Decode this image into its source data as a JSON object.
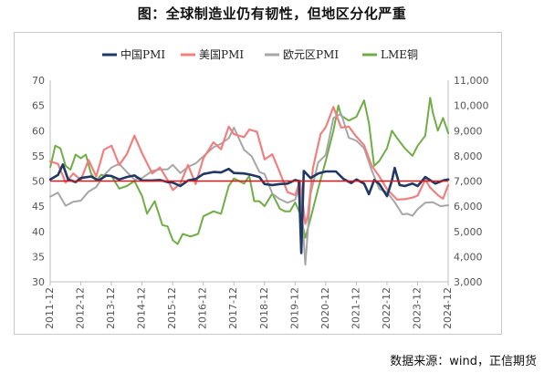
{
  "title": "图：全球制造业仍有韧性，但地区分化严重",
  "source": "数据来源：wind，正信期货",
  "chart_data": {
    "type": "line",
    "grid": false,
    "legend_position": "top",
    "x_tick_labels": [
      "2011-12",
      "2012-12",
      "2013-12",
      "2014-12",
      "2015-12",
      "2016-12",
      "2017-12",
      "2018-12",
      "2019-12",
      "2020-12",
      "2021-12",
      "2022-12",
      "2023-12",
      "2024-12"
    ],
    "x_range": [
      2011.917,
      2024.917
    ],
    "y_left": {
      "range": [
        30,
        70
      ],
      "ticks": [
        30,
        35,
        40,
        45,
        50,
        55,
        60,
        65,
        70
      ]
    },
    "y_right": {
      "range": [
        3000,
        11000
      ],
      "ticks": [
        "3,000",
        "4,000",
        "5,000",
        "6,000",
        "7,000",
        "8,000",
        "9,000",
        "10,000",
        "11,000"
      ],
      "tick_values": [
        3000,
        4000,
        5000,
        6000,
        7000,
        8000,
        9000,
        10000,
        11000
      ]
    },
    "reference_line": {
      "axis": "left",
      "value": 50,
      "color": "#d7191c"
    },
    "series": [
      {
        "name": "中国PMI",
        "axis": "left",
        "color": "#1f3864",
        "width": 2.6,
        "points": [
          [
            2011.92,
            50.3
          ],
          [
            2012.17,
            51.2
          ],
          [
            2012.33,
            53.3
          ],
          [
            2012.5,
            50.3
          ],
          [
            2012.75,
            49.8
          ],
          [
            2012.92,
            50.6
          ],
          [
            2013.25,
            50.9
          ],
          [
            2013.5,
            50.1
          ],
          [
            2013.75,
            51.1
          ],
          [
            2013.92,
            51.0
          ],
          [
            2014.17,
            50.3
          ],
          [
            2014.42,
            50.8
          ],
          [
            2014.67,
            51.1
          ],
          [
            2014.92,
            50.1
          ],
          [
            2015.25,
            50.1
          ],
          [
            2015.5,
            50.2
          ],
          [
            2015.75,
            49.8
          ],
          [
            2015.92,
            49.7
          ],
          [
            2016.17,
            49.0
          ],
          [
            2016.42,
            50.1
          ],
          [
            2016.67,
            50.4
          ],
          [
            2016.92,
            51.4
          ],
          [
            2017.25,
            51.8
          ],
          [
            2017.5,
            51.7
          ],
          [
            2017.75,
            52.4
          ],
          [
            2017.92,
            51.6
          ],
          [
            2018.25,
            51.5
          ],
          [
            2018.5,
            51.2
          ],
          [
            2018.75,
            50.8
          ],
          [
            2018.92,
            49.4
          ],
          [
            2019.17,
            49.2
          ],
          [
            2019.42,
            49.4
          ],
          [
            2019.67,
            49.5
          ],
          [
            2019.92,
            50.2
          ],
          [
            2020.04,
            50.0
          ],
          [
            2020.12,
            35.7
          ],
          [
            2020.2,
            52.0
          ],
          [
            2020.42,
            50.6
          ],
          [
            2020.67,
            51.5
          ],
          [
            2020.92,
            51.9
          ],
          [
            2021.25,
            51.9
          ],
          [
            2021.5,
            50.4
          ],
          [
            2021.75,
            49.6
          ],
          [
            2021.92,
            50.3
          ],
          [
            2022.17,
            49.5
          ],
          [
            2022.33,
            47.4
          ],
          [
            2022.5,
            50.2
          ],
          [
            2022.67,
            49.4
          ],
          [
            2022.92,
            47.0
          ],
          [
            2023.08,
            50.1
          ],
          [
            2023.17,
            52.6
          ],
          [
            2023.33,
            49.2
          ],
          [
            2023.5,
            49.0
          ],
          [
            2023.75,
            49.5
          ],
          [
            2023.92,
            49.0
          ],
          [
            2024.17,
            50.8
          ],
          [
            2024.5,
            49.5
          ],
          [
            2024.75,
            50.1
          ],
          [
            2024.92,
            50.3
          ]
        ]
      },
      {
        "name": "美国PMI",
        "axis": "left",
        "color": "#f08080",
        "width": 2.2,
        "points": [
          [
            2011.92,
            53.9
          ],
          [
            2012.17,
            53.4
          ],
          [
            2012.42,
            49.7
          ],
          [
            2012.67,
            51.5
          ],
          [
            2012.92,
            50.2
          ],
          [
            2013.17,
            54.2
          ],
          [
            2013.42,
            50.9
          ],
          [
            2013.67,
            56.2
          ],
          [
            2013.92,
            57.0
          ],
          [
            2014.17,
            53.2
          ],
          [
            2014.42,
            55.3
          ],
          [
            2014.67,
            59.0
          ],
          [
            2014.92,
            55.5
          ],
          [
            2015.25,
            51.5
          ],
          [
            2015.5,
            52.7
          ],
          [
            2015.75,
            50.2
          ],
          [
            2015.92,
            48.2
          ],
          [
            2016.17,
            49.5
          ],
          [
            2016.42,
            53.2
          ],
          [
            2016.67,
            49.4
          ],
          [
            2016.92,
            54.5
          ],
          [
            2017.25,
            57.7
          ],
          [
            2017.5,
            56.3
          ],
          [
            2017.75,
            60.8
          ],
          [
            2017.92,
            59.3
          ],
          [
            2018.25,
            58.7
          ],
          [
            2018.42,
            60.2
          ],
          [
            2018.67,
            59.8
          ],
          [
            2018.92,
            54.3
          ],
          [
            2019.17,
            55.3
          ],
          [
            2019.42,
            51.7
          ],
          [
            2019.67,
            47.8
          ],
          [
            2019.92,
            47.2
          ],
          [
            2020.08,
            50.1
          ],
          [
            2020.25,
            41.5
          ],
          [
            2020.33,
            43.1
          ],
          [
            2020.5,
            52.6
          ],
          [
            2020.75,
            59.3
          ],
          [
            2020.92,
            60.7
          ],
          [
            2021.17,
            64.7
          ],
          [
            2021.42,
            60.6
          ],
          [
            2021.67,
            60.8
          ],
          [
            2021.92,
            58.8
          ],
          [
            2022.17,
            57.1
          ],
          [
            2022.42,
            53.0
          ],
          [
            2022.67,
            50.9
          ],
          [
            2022.92,
            48.4
          ],
          [
            2023.25,
            46.3
          ],
          [
            2023.5,
            46.4
          ],
          [
            2023.75,
            46.7
          ],
          [
            2023.92,
            47.1
          ],
          [
            2024.17,
            50.3
          ],
          [
            2024.33,
            48.7
          ],
          [
            2024.58,
            47.2
          ],
          [
            2024.75,
            46.5
          ],
          [
            2024.92,
            49.2
          ]
        ]
      },
      {
        "name": "欧元区PMI",
        "axis": "left",
        "color": "#a6a6a6",
        "width": 2.0,
        "points": [
          [
            2011.92,
            46.9
          ],
          [
            2012.17,
            47.7
          ],
          [
            2012.42,
            45.1
          ],
          [
            2012.67,
            45.9
          ],
          [
            2012.92,
            46.1
          ],
          [
            2013.17,
            47.9
          ],
          [
            2013.42,
            48.8
          ],
          [
            2013.67,
            51.1
          ],
          [
            2013.92,
            52.7
          ],
          [
            2014.17,
            53.4
          ],
          [
            2014.42,
            51.8
          ],
          [
            2014.67,
            50.3
          ],
          [
            2014.92,
            50.6
          ],
          [
            2015.25,
            52.0
          ],
          [
            2015.5,
            52.3
          ],
          [
            2015.75,
            52.3
          ],
          [
            2015.92,
            53.2
          ],
          [
            2016.17,
            51.6
          ],
          [
            2016.42,
            52.8
          ],
          [
            2016.67,
            53.5
          ],
          [
            2016.92,
            54.9
          ],
          [
            2017.25,
            56.7
          ],
          [
            2017.5,
            57.4
          ],
          [
            2017.75,
            58.5
          ],
          [
            2017.92,
            60.6
          ],
          [
            2018.25,
            56.2
          ],
          [
            2018.5,
            54.9
          ],
          [
            2018.75,
            51.8
          ],
          [
            2018.92,
            51.4
          ],
          [
            2019.17,
            47.5
          ],
          [
            2019.42,
            46.4
          ],
          [
            2019.67,
            45.7
          ],
          [
            2019.92,
            46.3
          ],
          [
            2020.08,
            49.2
          ],
          [
            2020.25,
            33.4
          ],
          [
            2020.42,
            47.4
          ],
          [
            2020.67,
            53.7
          ],
          [
            2020.92,
            55.2
          ],
          [
            2021.17,
            62.5
          ],
          [
            2021.42,
            63.4
          ],
          [
            2021.67,
            58.6
          ],
          [
            2021.92,
            58.0
          ],
          [
            2022.17,
            56.5
          ],
          [
            2022.42,
            52.1
          ],
          [
            2022.67,
            48.4
          ],
          [
            2022.92,
            47.8
          ],
          [
            2023.17,
            45.8
          ],
          [
            2023.42,
            43.4
          ],
          [
            2023.58,
            43.5
          ],
          [
            2023.75,
            43.1
          ],
          [
            2023.92,
            44.4
          ],
          [
            2024.17,
            45.7
          ],
          [
            2024.42,
            45.8
          ],
          [
            2024.67,
            45.0
          ],
          [
            2024.92,
            45.2
          ]
        ]
      },
      {
        "name": "LME铜",
        "axis": "right",
        "color": "#70ad47",
        "width": 2.0,
        "points": [
          [
            2011.92,
            7550
          ],
          [
            2012.08,
            8400
          ],
          [
            2012.25,
            8300
          ],
          [
            2012.42,
            7600
          ],
          [
            2012.58,
            7450
          ],
          [
            2012.75,
            8050
          ],
          [
            2012.92,
            7900
          ],
          [
            2013.08,
            8050
          ],
          [
            2013.25,
            7300
          ],
          [
            2013.42,
            7000
          ],
          [
            2013.58,
            7250
          ],
          [
            2013.75,
            7200
          ],
          [
            2013.92,
            7200
          ],
          [
            2014.17,
            6700
          ],
          [
            2014.42,
            6800
          ],
          [
            2014.67,
            7000
          ],
          [
            2014.92,
            6400
          ],
          [
            2015.08,
            5700
          ],
          [
            2015.33,
            6200
          ],
          [
            2015.58,
            5250
          ],
          [
            2015.75,
            5200
          ],
          [
            2015.92,
            4650
          ],
          [
            2016.08,
            4500
          ],
          [
            2016.25,
            4900
          ],
          [
            2016.5,
            4800
          ],
          [
            2016.75,
            4900
          ],
          [
            2016.92,
            5600
          ],
          [
            2017.25,
            5800
          ],
          [
            2017.5,
            5700
          ],
          [
            2017.75,
            6800
          ],
          [
            2017.92,
            7100
          ],
          [
            2018.25,
            6900
          ],
          [
            2018.42,
            7200
          ],
          [
            2018.58,
            6200
          ],
          [
            2018.75,
            6200
          ],
          [
            2018.92,
            6000
          ],
          [
            2019.17,
            6500
          ],
          [
            2019.42,
            5900
          ],
          [
            2019.58,
            5800
          ],
          [
            2019.75,
            5800
          ],
          [
            2019.92,
            6150
          ],
          [
            2020.08,
            5700
          ],
          [
            2020.25,
            4750
          ],
          [
            2020.42,
            5500
          ],
          [
            2020.67,
            6700
          ],
          [
            2020.92,
            7800
          ],
          [
            2021.17,
            9000
          ],
          [
            2021.33,
            10000
          ],
          [
            2021.42,
            9600
          ],
          [
            2021.67,
            9400
          ],
          [
            2021.92,
            9550
          ],
          [
            2022.17,
            10200
          ],
          [
            2022.33,
            9300
          ],
          [
            2022.5,
            7600
          ],
          [
            2022.67,
            7800
          ],
          [
            2022.92,
            8300
          ],
          [
            2023.08,
            9000
          ],
          [
            2023.25,
            8700
          ],
          [
            2023.5,
            8300
          ],
          [
            2023.75,
            8000
          ],
          [
            2023.92,
            8400
          ],
          [
            2024.17,
            8800
          ],
          [
            2024.33,
            10300
          ],
          [
            2024.42,
            9700
          ],
          [
            2024.58,
            9000
          ],
          [
            2024.75,
            9500
          ],
          [
            2024.92,
            8900
          ]
        ]
      }
    ]
  }
}
